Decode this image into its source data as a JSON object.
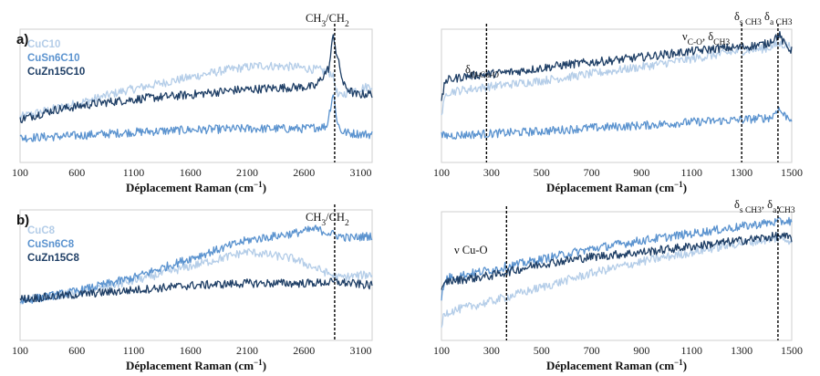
{
  "colors": {
    "light": "#b4cde8",
    "mid": "#5b93cf",
    "dark": "#1f3f66",
    "marker": "#000000"
  },
  "chart_data": [
    {
      "panel_label": "a)",
      "type": "line",
      "xlabel_main": "Déplacement Raman (cm",
      "xlabel_sup": "−1",
      "xlabel_end": ")",
      "xlim": [
        100,
        3200
      ],
      "xticks": [
        "100",
        "600",
        "1100",
        "1600",
        "2100",
        "2600",
        "3100"
      ],
      "xtick_values": [
        100,
        600,
        1100,
        1600,
        2100,
        2600,
        3100
      ],
      "ylim": [
        0,
        1
      ],
      "legend": [
        "CuC10",
        "CuSn6C10",
        "CuZn15C10"
      ],
      "series": [
        {
          "name": "CuC10",
          "color": "light",
          "x": [
            100,
            400,
            700,
            1000,
            1300,
            1600,
            1900,
            2200,
            2500,
            2750,
            2850,
            2900,
            3000,
            3200
          ],
          "y": [
            0.28,
            0.35,
            0.42,
            0.5,
            0.56,
            0.62,
            0.68,
            0.72,
            0.71,
            0.68,
            0.65,
            0.45,
            0.5,
            0.55
          ]
        },
        {
          "name": "CuSn6C10",
          "color": "mid",
          "x": [
            100,
            600,
            1100,
            1600,
            2100,
            2600,
            2800,
            2860,
            2880,
            2920,
            3000,
            3200
          ],
          "y": [
            0.1,
            0.12,
            0.15,
            0.17,
            0.18,
            0.18,
            0.2,
            0.5,
            0.3,
            0.16,
            0.14,
            0.13
          ]
        },
        {
          "name": "CuZn15C10",
          "color": "dark",
          "x": [
            100,
            400,
            800,
            1200,
            1600,
            2000,
            2400,
            2700,
            2820,
            2860,
            2880,
            2950,
            3050,
            3200
          ],
          "y": [
            0.26,
            0.34,
            0.4,
            0.44,
            0.47,
            0.51,
            0.53,
            0.54,
            0.7,
            1.0,
            0.85,
            0.55,
            0.47,
            0.48
          ]
        }
      ],
      "markers": [
        {
          "x": 2870,
          "label_parts": [
            [
              "CH",
              ""
            ],
            [
              "3",
              "sub"
            ],
            [
              "/CH",
              ""
            ],
            [
              "2",
              "sub"
            ]
          ]
        }
      ]
    },
    {
      "panel_label": "",
      "type": "line",
      "xlabel_main": "Déplacement Raman (cm",
      "xlabel_sup": "−1",
      "xlabel_end": ")",
      "xlim": [
        100,
        1500
      ],
      "xticks": [
        "100",
        "300",
        "500",
        "700",
        "900",
        "1100",
        "1300",
        "1500"
      ],
      "xtick_values": [
        100,
        300,
        500,
        700,
        900,
        1100,
        1300,
        1500
      ],
      "ylim": [
        0,
        1
      ],
      "legend": [],
      "series": [
        {
          "name": "",
          "color": "light",
          "x": [
            100,
            120,
            300,
            500,
            700,
            900,
            1100,
            1300,
            1400,
            1450,
            1500
          ],
          "y": [
            0.3,
            0.5,
            0.55,
            0.6,
            0.66,
            0.72,
            0.79,
            0.86,
            0.88,
            0.92,
            0.9
          ]
        },
        {
          "name": "",
          "color": "mid",
          "x": [
            100,
            300,
            500,
            700,
            900,
            1100,
            1300,
            1420,
            1445,
            1470,
            1500
          ],
          "y": [
            0.12,
            0.14,
            0.16,
            0.19,
            0.21,
            0.24,
            0.26,
            0.28,
            0.36,
            0.3,
            0.27
          ]
        },
        {
          "name": "",
          "color": "dark",
          "x": [
            100,
            115,
            200,
            400,
            600,
            800,
            1000,
            1200,
            1300,
            1400,
            1450,
            1470,
            1500
          ],
          "y": [
            0.4,
            0.6,
            0.64,
            0.68,
            0.74,
            0.78,
            0.83,
            0.88,
            0.89,
            0.92,
            1.0,
            0.92,
            0.86
          ]
        }
      ],
      "markers": [
        {
          "x": 280,
          "label_parts": [
            [
              "δ",
              ""
            ],
            [
              "O-Cu-O",
              "sub"
            ]
          ]
        },
        {
          "x": 1300,
          "label_parts": [
            [
              "ν",
              ""
            ],
            [
              "C-O",
              "sub"
            ],
            [
              ", δ",
              ""
            ],
            [
              "CH3",
              "sub"
            ]
          ]
        },
        {
          "x": 1445,
          "label_parts": [
            [
              "δ",
              ""
            ],
            [
              "s CH3",
              "sub"
            ],
            [
              "  δ",
              ""
            ],
            [
              "a CH3",
              "sub"
            ]
          ]
        }
      ]
    },
    {
      "panel_label": "b)",
      "type": "line",
      "xlabel_main": "Déplacement Raman (cm",
      "xlabel_sup": "−1",
      "xlabel_end": ")",
      "xlim": [
        100,
        3200
      ],
      "xticks": [
        "100",
        "600",
        "1100",
        "1600",
        "2100",
        "2600",
        "3100"
      ],
      "xtick_values": [
        100,
        600,
        1100,
        1600,
        2100,
        2600,
        3100
      ],
      "ylim": [
        0,
        1
      ],
      "legend": [
        "CuC8",
        "CuSn6C8",
        "CuZn15C8"
      ],
      "series": [
        {
          "name": "CuC8",
          "color": "light",
          "x": [
            100,
            600,
            1100,
            1600,
            2100,
            2500,
            2900,
            3200
          ],
          "y": [
            0.25,
            0.32,
            0.42,
            0.55,
            0.68,
            0.62,
            0.45,
            0.48
          ]
        },
        {
          "name": "CuSn6C8",
          "color": "mid",
          "x": [
            100,
            600,
            1100,
            1600,
            2100,
            2500,
            2700,
            2900,
            3000,
            3200
          ],
          "y": [
            0.24,
            0.33,
            0.45,
            0.62,
            0.78,
            0.84,
            0.88,
            0.82,
            0.8,
            0.82
          ]
        },
        {
          "name": "CuZn15C8",
          "color": "dark",
          "x": [
            100,
            600,
            1100,
            1600,
            2100,
            2600,
            2900,
            3200
          ],
          "y": [
            0.26,
            0.3,
            0.34,
            0.38,
            0.4,
            0.4,
            0.41,
            0.38
          ]
        }
      ],
      "markers": [
        {
          "x": 2870,
          "label_parts": [
            [
              "CH",
              ""
            ],
            [
              "3",
              "sub"
            ],
            [
              "/CH",
              ""
            ],
            [
              "2",
              "sub"
            ]
          ]
        }
      ]
    },
    {
      "panel_label": "",
      "type": "line",
      "xlabel_main": "Déplacement Raman (cm",
      "xlabel_sup": "−1",
      "xlabel_end": ")",
      "xlim": [
        100,
        1500
      ],
      "xticks": [
        "100",
        "300",
        "500",
        "700",
        "900",
        "1100",
        "1300",
        "1500"
      ],
      "xtick_values": [
        100,
        300,
        500,
        700,
        900,
        1100,
        1300,
        1500
      ],
      "ylim": [
        0,
        1
      ],
      "legend": [],
      "series": [
        {
          "name": "",
          "color": "light",
          "x": [
            100,
            110,
            300,
            500,
            700,
            900,
            1100,
            1300,
            1450,
            1500
          ],
          "y": [
            0.05,
            0.18,
            0.28,
            0.4,
            0.52,
            0.62,
            0.7,
            0.78,
            0.82,
            0.8
          ]
        },
        {
          "name": "",
          "color": "mid",
          "x": [
            100,
            120,
            300,
            500,
            700,
            900,
            1100,
            1300,
            1400,
            1500
          ],
          "y": [
            0.32,
            0.48,
            0.55,
            0.64,
            0.73,
            0.8,
            0.86,
            0.92,
            0.95,
            0.97
          ]
        },
        {
          "name": "",
          "color": "dark",
          "x": [
            100,
            120,
            300,
            500,
            700,
            900,
            1100,
            1300,
            1450,
            1500
          ],
          "y": [
            0.36,
            0.45,
            0.5,
            0.6,
            0.66,
            0.7,
            0.75,
            0.8,
            0.84,
            0.82
          ]
        }
      ],
      "markers": [
        {
          "x": 360,
          "label_parts": [
            [
              "ν Cu-O",
              ""
            ]
          ]
        },
        {
          "x": 1445,
          "label_parts": [
            [
              "δ",
              ""
            ],
            [
              "s CH3",
              "sub"
            ],
            [
              ", δ",
              ""
            ],
            [
              "a CH3",
              "sub"
            ]
          ]
        }
      ]
    }
  ]
}
